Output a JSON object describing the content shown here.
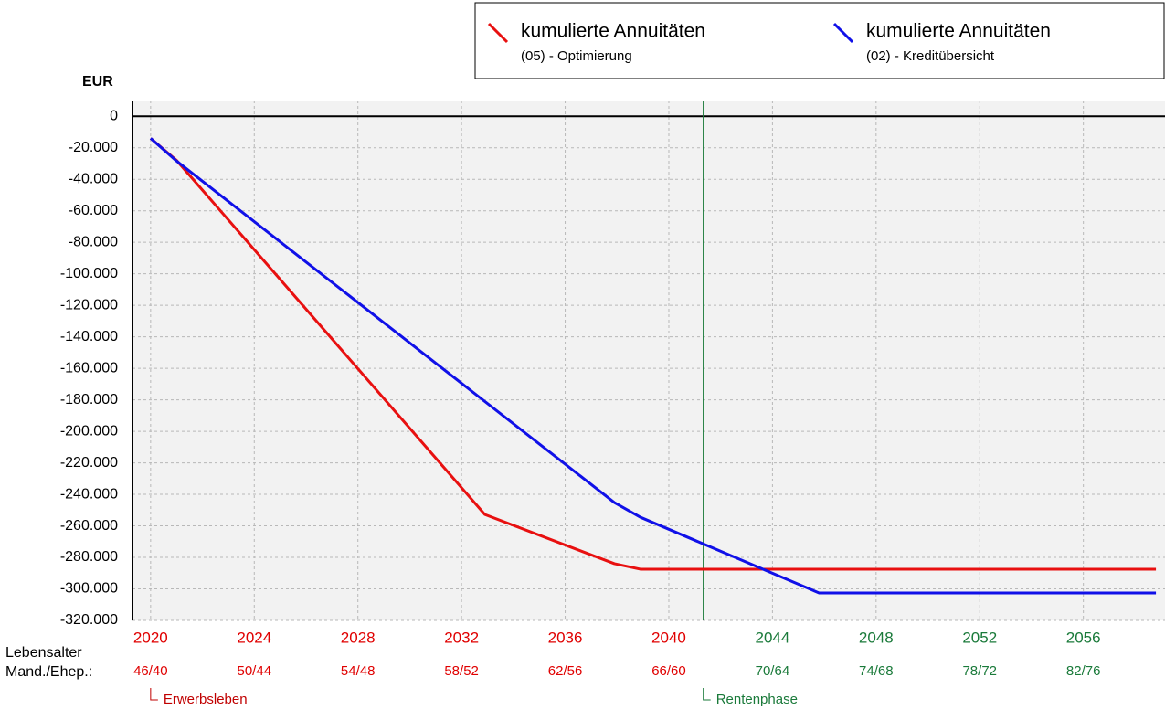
{
  "chart_data": {
    "type": "line",
    "y_label": "EUR",
    "xlim": [
      2019.3,
      2059.15
    ],
    "ylim": [
      -320000,
      10000
    ],
    "xticks": [
      2020,
      2024,
      2028,
      2032,
      2036,
      2040,
      2044,
      2048,
      2052,
      2056
    ],
    "xtick_colors": [
      "#e00000",
      "#e00000",
      "#e00000",
      "#e00000",
      "#e00000",
      "#e00000",
      "#1a7a3a",
      "#1a7a3a",
      "#1a7a3a",
      "#1a7a3a"
    ],
    "age_title": [
      "Lebensalter",
      "Mand./Ehep.:"
    ],
    "age_labels": [
      "46/40",
      "50/44",
      "54/48",
      "58/52",
      "62/56",
      "66/60",
      "70/64",
      "74/68",
      "78/72",
      "82/76"
    ],
    "yticks": [
      0,
      {
        "value": -20000,
        "label": "-20.000"
      },
      {
        "value": -40000,
        "label": "-40.000"
      },
      {
        "value": -60000,
        "label": "-60.000"
      },
      {
        "value": -80000,
        "label": "-80.000"
      },
      {
        "value": -100000,
        "label": "-100.000"
      },
      {
        "value": -120000,
        "label": "-120.000"
      },
      {
        "value": -140000,
        "label": "-140.000"
      },
      {
        "value": -160000,
        "label": "-160.000"
      },
      {
        "value": -180000,
        "label": "-180.000"
      },
      {
        "value": -200000,
        "label": "-200.000"
      },
      {
        "value": -220000,
        "label": "-220.000"
      },
      {
        "value": -240000,
        "label": "-240.000"
      },
      {
        "value": -260000,
        "label": "-260.000"
      },
      {
        "value": -280000,
        "label": "-280.000"
      },
      {
        "value": -300000,
        "label": "-300.000"
      },
      {
        "value": -320000,
        "label": "-320.000"
      }
    ],
    "grid": true,
    "series": [
      {
        "name": "kumulierte Annuitäten",
        "subname": "(05) - Optimierung",
        "color": "#e81010",
        "x": [
          2020,
          2021,
          2032.9,
          2037.9,
          2038.9,
          2058.8
        ],
        "values": [
          -14000,
          -28000,
          -252800,
          -284000,
          -287500,
          -287500
        ]
      },
      {
        "name": "kumulierte Annuitäten",
        "subname": "(02) - Kreditübersicht",
        "color": "#1010e8",
        "x": [
          2020,
          2021,
          2037.9,
          2038.9,
          2045.8,
          2058.8
        ],
        "values": [
          -14000,
          -28400,
          -245200,
          -254500,
          -302600,
          -302600
        ]
      }
    ],
    "markers": [
      {
        "x": 2020,
        "label": "Erwerbsleben",
        "color": "#c00000",
        "line": false
      },
      {
        "x": 2041.33,
        "label": "Rentenphase",
        "color": "#1a7a3a",
        "line": true
      }
    ]
  }
}
